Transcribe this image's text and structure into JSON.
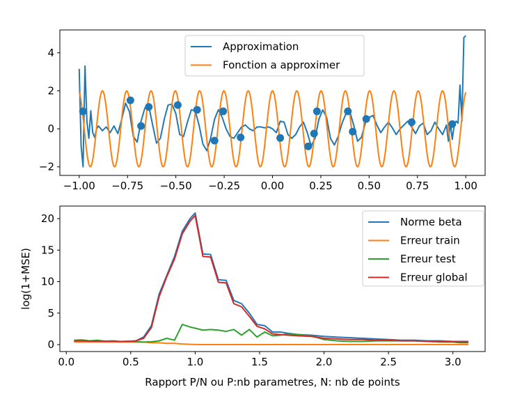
{
  "chart_data": [
    {
      "type": "line",
      "title": "",
      "xlabel": "",
      "ylabel": "",
      "xlim": [
        -1.1,
        1.1
      ],
      "ylim": [
        -2.45,
        5.2
      ],
      "grid": false,
      "legend_position": "top-center",
      "x_ticks": [
        -1.0,
        -0.75,
        -0.5,
        -0.25,
        0.0,
        0.25,
        0.5,
        0.75,
        1.0
      ],
      "x_tick_labels": [
        "−1.00",
        "−0.75",
        "−0.50",
        "−0.25",
        "0.00",
        "0.25",
        "0.50",
        "0.75",
        "1.00"
      ],
      "y_ticks": [
        -2,
        0,
        2,
        4
      ],
      "y_tick_labels": [
        "−2",
        "0",
        "2",
        "4"
      ],
      "series": [
        {
          "name": "Approximation",
          "color": "#1f77b4",
          "x": [
            -1.0,
            -0.99,
            -0.98,
            -0.97,
            -0.96,
            -0.95,
            -0.94,
            -0.93,
            -0.92,
            -0.91,
            -0.9,
            -0.88,
            -0.86,
            -0.84,
            -0.82,
            -0.8,
            -0.78,
            -0.76,
            -0.74,
            -0.72,
            -0.7,
            -0.68,
            -0.66,
            -0.64,
            -0.62,
            -0.6,
            -0.58,
            -0.56,
            -0.54,
            -0.52,
            -0.5,
            -0.48,
            -0.46,
            -0.44,
            -0.42,
            -0.4,
            -0.38,
            -0.36,
            -0.34,
            -0.32,
            -0.3,
            -0.28,
            -0.26,
            -0.24,
            -0.22,
            -0.2,
            -0.18,
            -0.16,
            -0.14,
            -0.12,
            -0.1,
            -0.08,
            -0.06,
            -0.04,
            -0.02,
            0.0,
            0.02,
            0.04,
            0.06,
            0.08,
            0.1,
            0.12,
            0.14,
            0.16,
            0.18,
            0.2,
            0.22,
            0.24,
            0.26,
            0.28,
            0.3,
            0.32,
            0.34,
            0.36,
            0.38,
            0.4,
            0.42,
            0.44,
            0.46,
            0.48,
            0.5,
            0.52,
            0.54,
            0.56,
            0.58,
            0.6,
            0.62,
            0.64,
            0.66,
            0.68,
            0.7,
            0.72,
            0.74,
            0.76,
            0.78,
            0.8,
            0.82,
            0.84,
            0.86,
            0.88,
            0.9,
            0.91,
            0.92,
            0.93,
            0.94,
            0.95,
            0.96,
            0.97,
            0.98,
            0.99,
            1.0
          ],
          "y": [
            3.15,
            -0.9,
            -2.0,
            3.3,
            0.4,
            -0.5,
            0.95,
            -0.2,
            -0.45,
            0.0,
            0.15,
            -0.1,
            0.1,
            -0.2,
            0.15,
            -0.25,
            0.5,
            1.35,
            0.9,
            -0.4,
            -0.7,
            0.4,
            1.1,
            1.2,
            0.2,
            -0.75,
            -0.5,
            0.5,
            1.25,
            1.3,
            0.8,
            -0.3,
            -0.4,
            0.35,
            1.0,
            0.95,
            0.2,
            -0.8,
            -1.15,
            -0.5,
            0.5,
            1.0,
            0.6,
            0.0,
            -0.4,
            -0.5,
            -0.2,
            0.1,
            0.2,
            0.0,
            -0.1,
            0.1,
            0.1,
            0.05,
            0.1,
            0.0,
            -0.2,
            0.4,
            0.35,
            -0.3,
            -0.5,
            -0.3,
            0.1,
            0.35,
            -0.2,
            -0.9,
            -0.5,
            0.5,
            1.0,
            0.6,
            -0.5,
            -0.85,
            -0.4,
            0.3,
            0.8,
            0.9,
            0.2,
            -0.65,
            -0.45,
            0.3,
            0.6,
            0.7,
            0.2,
            -0.2,
            0.1,
            0.35,
            0.05,
            -0.3,
            0.0,
            0.2,
            0.4,
            0.1,
            -0.25,
            0.15,
            0.3,
            -0.3,
            -0.1,
            0.35,
            0.0,
            -0.3,
            0.2,
            -0.65,
            0.3,
            -0.55,
            0.2,
            0.4,
            0.3,
            2.3,
            0.4,
            4.8,
            4.9
          ]
        },
        {
          "name": "Fonction a approximer",
          "color": "#ff7f0e",
          "function": "2*cos(50*x)",
          "samples": 500
        }
      ],
      "points": {
        "color": "#1f77b4",
        "x": [
          -0.98,
          -0.735,
          -0.68,
          -0.64,
          -0.49,
          -0.39,
          -0.3,
          -0.255,
          -0.165,
          0.04,
          0.185,
          0.215,
          0.23,
          0.39,
          0.415,
          0.485,
          0.72,
          0.93
        ],
        "y": [
          0.92,
          1.5,
          0.15,
          1.15,
          1.25,
          1.0,
          -0.62,
          0.92,
          -0.45,
          -0.48,
          -0.92,
          -0.25,
          0.92,
          0.92,
          -0.15,
          0.52,
          0.35,
          0.25
        ]
      }
    },
    {
      "type": "line",
      "title": "",
      "xlabel": "Rapport P/N ou P:nb parametres, N: nb de points",
      "ylabel": "log(1+MSE)",
      "xlim": [
        -0.05,
        3.25
      ],
      "ylim": [
        -1.1,
        22.0
      ],
      "grid": false,
      "legend_position": "top-right",
      "x_ticks": [
        0.0,
        0.5,
        1.0,
        1.5,
        2.0,
        2.5,
        3.0
      ],
      "x_tick_labels": [
        "0.0",
        "0.5",
        "1.0",
        "1.5",
        "2.0",
        "2.5",
        "3.0"
      ],
      "y_ticks": [
        0,
        5,
        10,
        15,
        20
      ],
      "y_tick_labels": [
        "0",
        "5",
        "10",
        "15",
        "20"
      ],
      "x": [
        0.06,
        0.12,
        0.18,
        0.24,
        0.3,
        0.36,
        0.42,
        0.48,
        0.54,
        0.6,
        0.66,
        0.72,
        0.78,
        0.84,
        0.9,
        0.96,
        1.0,
        1.06,
        1.12,
        1.18,
        1.24,
        1.3,
        1.36,
        1.42,
        1.48,
        1.54,
        1.6,
        1.66,
        1.72,
        1.8,
        1.9,
        2.0,
        2.1,
        2.2,
        2.3,
        2.4,
        2.5,
        2.6,
        2.7,
        2.8,
        2.9,
        3.0,
        3.06,
        3.12
      ],
      "series": [
        {
          "name": "Norme beta",
          "color": "#1f77b4",
          "y": [
            0.5,
            0.5,
            0.5,
            0.5,
            0.5,
            0.5,
            0.5,
            0.5,
            0.6,
            1.2,
            3.0,
            8.0,
            11.0,
            14.0,
            18.0,
            20.0,
            20.9,
            14.4,
            14.3,
            10.3,
            10.2,
            7.0,
            6.5,
            5.0,
            3.2,
            3.0,
            2.0,
            2.0,
            1.8,
            1.6,
            1.5,
            1.3,
            1.2,
            1.1,
            1.0,
            0.9,
            0.8,
            0.7,
            0.7,
            0.6,
            0.6,
            0.5,
            0.5,
            0.5
          ]
        },
        {
          "name": "Erreur train",
          "color": "#ff7f0e",
          "y": [
            0.4,
            0.4,
            0.4,
            0.4,
            0.4,
            0.4,
            0.4,
            0.4,
            0.4,
            0.4,
            0.3,
            0.3,
            0.2,
            0.2,
            0.1,
            0.05,
            0.02,
            0.0,
            0.0,
            0.0,
            0.0,
            0.0,
            0.0,
            0.0,
            0.0,
            0.0,
            0.0,
            0.0,
            0.0,
            0.0,
            0.0,
            0.0,
            0.0,
            0.0,
            0.0,
            0.0,
            0.0,
            0.0,
            0.0,
            0.0,
            0.0,
            0.0,
            0.0,
            0.0
          ]
        },
        {
          "name": "Erreur test",
          "color": "#2ca02c",
          "y": [
            0.7,
            0.75,
            0.6,
            0.7,
            0.55,
            0.6,
            0.5,
            0.55,
            0.45,
            0.4,
            0.45,
            0.6,
            1.0,
            0.7,
            3.2,
            2.8,
            2.6,
            2.3,
            2.4,
            2.3,
            2.1,
            2.4,
            1.5,
            2.4,
            1.2,
            2.0,
            1.4,
            1.5,
            1.7,
            1.6,
            1.4,
            0.8,
            0.6,
            0.5,
            0.5,
            0.6,
            0.6,
            0.6,
            0.6,
            0.5,
            0.4,
            0.4,
            0.3,
            0.3
          ]
        },
        {
          "name": "Erreur global",
          "color": "#d62728",
          "y": [
            0.6,
            0.6,
            0.55,
            0.55,
            0.55,
            0.55,
            0.5,
            0.5,
            0.6,
            1.0,
            2.7,
            7.6,
            10.8,
            13.6,
            17.6,
            19.6,
            20.5,
            14.0,
            13.9,
            9.9,
            9.8,
            6.5,
            6.0,
            4.5,
            2.9,
            2.5,
            1.7,
            1.6,
            1.5,
            1.4,
            1.3,
            1.0,
            0.9,
            0.8,
            0.8,
            0.7,
            0.7,
            0.6,
            0.6,
            0.55,
            0.5,
            0.45,
            0.4,
            0.4
          ]
        }
      ]
    }
  ]
}
